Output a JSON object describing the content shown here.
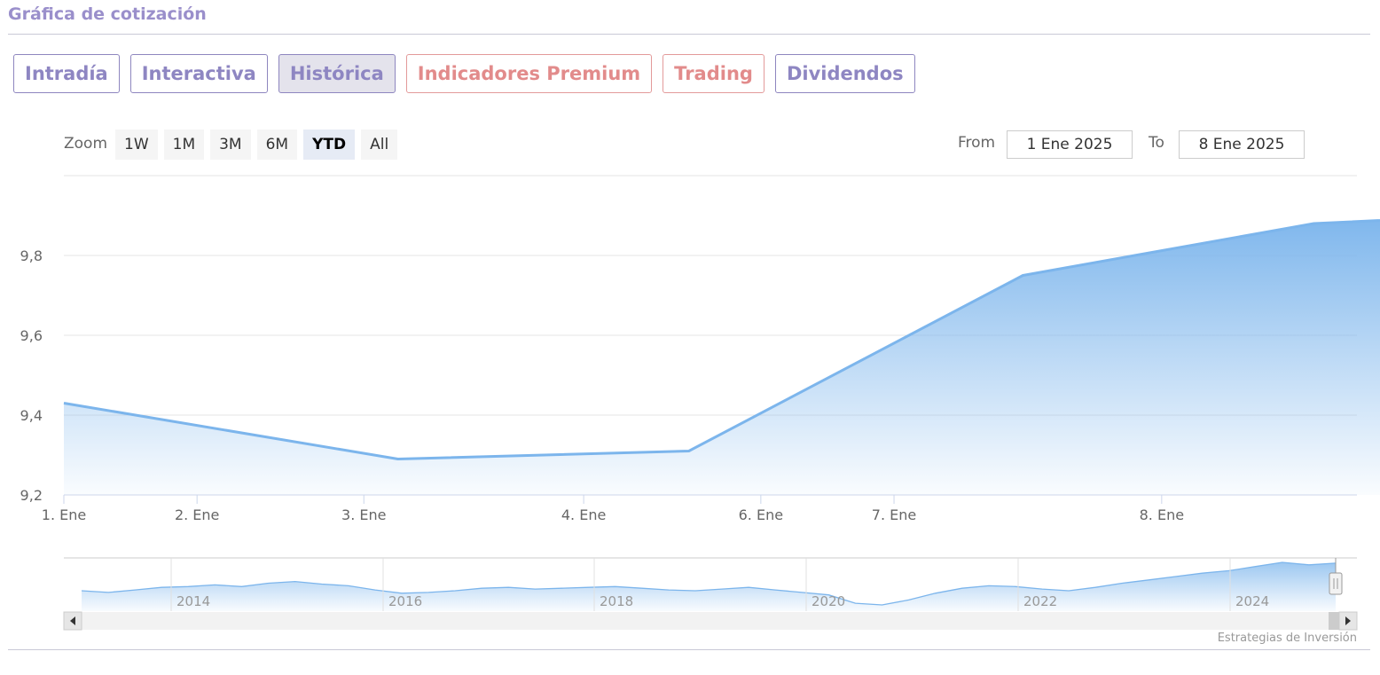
{
  "section_title": "Gráfica de cotización",
  "tabs": [
    {
      "label": "Intradía",
      "active": false,
      "premium": false
    },
    {
      "label": "Interactiva",
      "active": false,
      "premium": false
    },
    {
      "label": "Histórica",
      "active": true,
      "premium": false
    },
    {
      "label": "Indicadores Premium",
      "active": false,
      "premium": true
    },
    {
      "label": "Trading",
      "active": false,
      "premium": true
    },
    {
      "label": "Dividendos",
      "active": false,
      "premium": false
    }
  ],
  "zoom": {
    "label": "Zoom",
    "buttons": [
      "1W",
      "1M",
      "3M",
      "6M",
      "YTD",
      "All"
    ],
    "selected": "YTD"
  },
  "range": {
    "from_label": "From",
    "from_value": "1 Ene 2025",
    "to_label": "To",
    "to_value": "8 Ene 2025"
  },
  "credits": "Estrategias de Inversión",
  "colors": {
    "series_line": "#7cb5ec",
    "fill_top": "#7cb5ec",
    "fill_bottom": "#ffffff",
    "tab_border": "#8e86bf",
    "premium": "#e28b8b"
  },
  "chart_data": {
    "type": "area",
    "x": [
      "1. Ene",
      "2. Ene",
      "3. Ene",
      "4. Ene",
      "6. Ene",
      "7. Ene",
      "8. Ene"
    ],
    "xtick_labels": [
      "1. Ene",
      "2. Ene",
      "3. Ene",
      "4. Ene",
      "6. Ene",
      "7. Ene",
      "8. Ene"
    ],
    "points": [
      {
        "x": 0.0,
        "y": 9.43
      },
      {
        "x": 1.55,
        "y": 9.29
      },
      {
        "x": 2.9,
        "y": 9.31
      },
      {
        "x": 4.45,
        "y": 9.75
      },
      {
        "x": 5.8,
        "y": 9.88
      },
      {
        "x": 7.0,
        "y": 9.91
      }
    ],
    "ylim": [
      9.2,
      10.0
    ],
    "yticks": [
      "9,2",
      "9,4",
      "9,6",
      "9,8"
    ],
    "ytick_values": [
      9.2,
      9.4,
      9.6,
      9.8
    ],
    "grid": true,
    "navigator": {
      "year_labels": [
        "2014",
        "2016",
        "2018",
        "2020",
        "2022",
        "2024"
      ],
      "series": [
        6.5,
        6.3,
        6.6,
        6.9,
        7.0,
        7.2,
        7.0,
        7.4,
        7.6,
        7.3,
        7.1,
        6.6,
        6.2,
        6.3,
        6.5,
        6.8,
        6.9,
        6.7,
        6.8,
        6.9,
        7.0,
        6.8,
        6.6,
        6.5,
        6.7,
        6.9,
        6.6,
        6.3,
        6.0,
        5.0,
        4.8,
        5.4,
        6.2,
        6.8,
        7.1,
        7.0,
        6.7,
        6.5,
        6.9,
        7.4,
        7.8,
        8.2,
        8.6,
        8.9,
        9.4,
        9.9,
        9.6,
        9.8
      ]
    }
  }
}
